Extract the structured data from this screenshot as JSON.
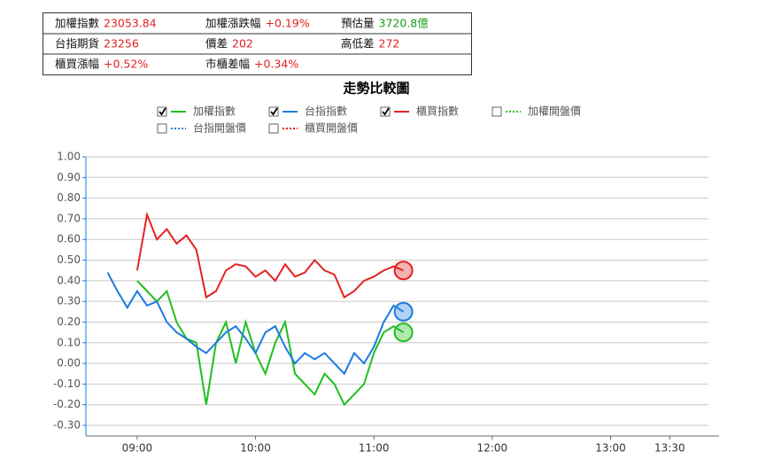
{
  "info_table": {
    "rows": [
      [
        {
          "label": "加權指數",
          "value": "23053.84",
          "color": "#e02020"
        },
        {
          "label": "加權漲跌幅",
          "value": "+0.19%",
          "color": "#e02020"
        },
        {
          "label": "預估量",
          "value": "3720.8億",
          "color": "#1a9a1a"
        }
      ],
      [
        {
          "label": "台指期貨",
          "value": "23256",
          "color": "#e02020"
        },
        {
          "label": "價差",
          "value": "202",
          "color": "#e02020"
        },
        {
          "label": "高低差",
          "value": "272",
          "color": "#e02020"
        }
      ],
      [
        {
          "label": "櫃買漲幅",
          "value": "+0.52%",
          "color": "#e02020"
        },
        {
          "label": "市櫃差幅",
          "value": "+0.34%",
          "color": "#e02020"
        }
      ]
    ]
  },
  "chart_data": {
    "type": "line",
    "title": "走勢比較圖",
    "x": [
      "08:45",
      "08:50",
      "08:55",
      "09:00",
      "09:05",
      "09:10",
      "09:15",
      "09:20",
      "09:25",
      "09:30",
      "09:35",
      "09:40",
      "09:45",
      "09:50",
      "09:55",
      "10:00",
      "10:05",
      "10:10",
      "10:15",
      "10:20",
      "10:25",
      "10:30",
      "10:35",
      "10:40",
      "10:45",
      "10:50",
      "10:55",
      "11:00",
      "11:05",
      "11:10",
      "11:15"
    ],
    "xlim": [
      "08:34",
      "13:55"
    ],
    "xticks": [
      "09:00",
      "10:00",
      "11:00",
      "12:00",
      "13:00",
      "13:30"
    ],
    "ylim": [
      -0.3,
      1.0
    ],
    "yticks": [
      {
        "value": -0.3,
        "label": "-0.30"
      },
      {
        "value": -0.2,
        "label": "-0.20"
      },
      {
        "value": -0.1,
        "label": "-0.10"
      },
      {
        "value": 0,
        "label": "0.00"
      },
      {
        "value": 0.1,
        "label": "0.10"
      },
      {
        "value": 0.2,
        "label": "0.20"
      },
      {
        "value": 0.3,
        "label": "0.30"
      },
      {
        "value": 0.4,
        "label": "0.40"
      },
      {
        "value": 0.5,
        "label": "0.50"
      },
      {
        "value": 0.6,
        "label": "0.60"
      },
      {
        "value": 0.7,
        "label": "0.70"
      },
      {
        "value": 0.8,
        "label": "0.80"
      },
      {
        "value": 0.9,
        "label": "0.90"
      },
      {
        "value": 1.0,
        "label": "1.00"
      }
    ],
    "grid": true,
    "series": [
      {
        "name": "加權指數",
        "color": "#1fbf1f",
        "visible": true,
        "line_style": "solid",
        "values": [
          null,
          null,
          null,
          0.4,
          0.35,
          0.3,
          0.35,
          0.2,
          0.12,
          0.1,
          -0.2,
          0.1,
          0.2,
          0.0,
          0.2,
          0.05,
          -0.05,
          0.1,
          0.2,
          -0.05,
          -0.1,
          -0.15,
          -0.05,
          -0.1,
          -0.2,
          -0.15,
          -0.1,
          0.05,
          0.15,
          0.18,
          0.15
        ]
      },
      {
        "name": "台指指數",
        "color": "#1e7be0",
        "visible": true,
        "line_style": "solid",
        "values": [
          0.44,
          0.35,
          0.27,
          0.35,
          0.28,
          0.3,
          0.2,
          0.15,
          0.12,
          0.08,
          0.05,
          0.1,
          0.15,
          0.18,
          0.12,
          0.05,
          0.15,
          0.18,
          0.08,
          0.0,
          0.05,
          0.02,
          0.05,
          0.0,
          -0.05,
          0.05,
          0.0,
          0.08,
          0.2,
          0.28,
          0.25
        ]
      },
      {
        "name": "櫃買指數",
        "color": "#e52222",
        "visible": true,
        "line_style": "solid",
        "values": [
          null,
          null,
          null,
          0.45,
          0.72,
          0.6,
          0.65,
          0.58,
          0.62,
          0.55,
          0.32,
          0.35,
          0.45,
          0.48,
          0.47,
          0.42,
          0.45,
          0.4,
          0.48,
          0.42,
          0.44,
          0.5,
          0.45,
          0.43,
          0.32,
          0.35,
          0.4,
          0.42,
          0.45,
          0.47,
          0.45
        ]
      },
      {
        "name": "加權開盤價",
        "color": "#1fbf1f",
        "visible": false,
        "line_style": "dotted",
        "values": [
          null,
          null,
          null,
          null,
          null,
          null,
          null,
          null,
          null,
          null,
          null,
          null,
          null,
          null,
          null,
          null,
          null,
          null,
          null,
          null,
          null,
          null,
          null,
          null,
          null,
          null,
          null,
          null,
          null,
          null,
          null
        ]
      },
      {
        "name": "台指開盤價",
        "color": "#1e7be0",
        "visible": false,
        "line_style": "dotted",
        "values": [
          null,
          null,
          null,
          null,
          null,
          null,
          null,
          null,
          null,
          null,
          null,
          null,
          null,
          null,
          null,
          null,
          null,
          null,
          null,
          null,
          null,
          null,
          null,
          null,
          null,
          null,
          null,
          null,
          null,
          null,
          null
        ]
      },
      {
        "name": "櫃買開盤價",
        "color": "#e52222",
        "visible": false,
        "line_style": "dotted",
        "values": [
          null,
          null,
          null,
          null,
          null,
          null,
          null,
          null,
          null,
          null,
          null,
          null,
          null,
          null,
          null,
          null,
          null,
          null,
          null,
          null,
          null,
          null,
          null,
          null,
          null,
          null,
          null,
          null,
          null,
          null,
          null
        ]
      }
    ]
  }
}
